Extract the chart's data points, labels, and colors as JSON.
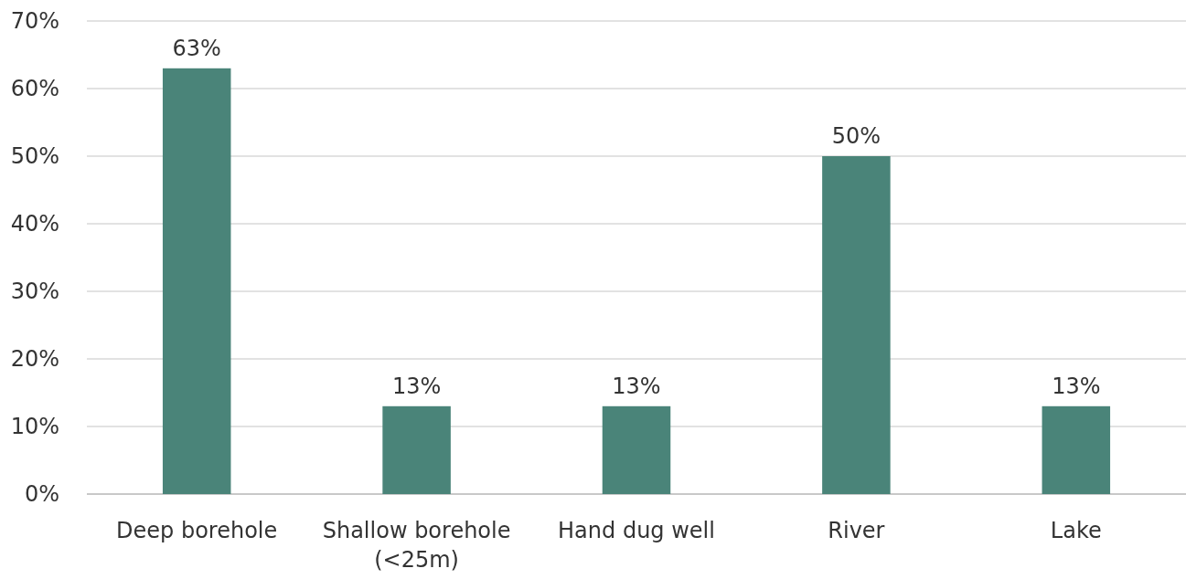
{
  "chart_data": {
    "type": "bar",
    "categories": [
      "Deep borehole",
      "Shallow borehole (<25m)",
      "Hand dug well",
      "River",
      "Lake"
    ],
    "values": [
      63,
      13,
      13,
      50,
      13
    ],
    "value_labels": [
      "63%",
      "13%",
      "13%",
      "50%",
      "13%"
    ],
    "color": "#4a8479",
    "ylim": [
      0,
      70
    ],
    "yticks": [
      {
        "value": 0,
        "label": "0%"
      },
      {
        "value": 10,
        "label": "10%"
      },
      {
        "value": 20,
        "label": "20%"
      },
      {
        "value": 30,
        "label": "30%"
      },
      {
        "value": 40,
        "label": "40%"
      },
      {
        "value": 50,
        "label": "50%"
      },
      {
        "value": 60,
        "label": "60%"
      },
      {
        "value": 70,
        "label": "70%"
      }
    ],
    "grid": "y"
  }
}
